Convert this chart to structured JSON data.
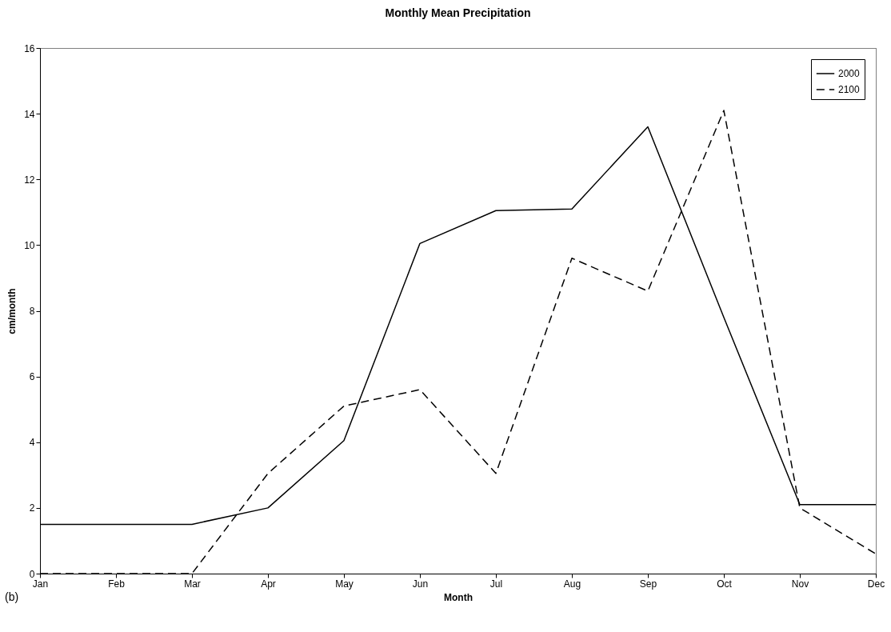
{
  "chart_data": {
    "type": "line",
    "title": "Monthly Mean Precipitation",
    "xlabel": "Month",
    "ylabel": "cm/month",
    "categories": [
      "Jan",
      "Feb",
      "Mar",
      "Apr",
      "May",
      "Jun",
      "Jul",
      "Aug",
      "Sep",
      "Oct",
      "Nov",
      "Dec"
    ],
    "series": [
      {
        "name": "2000",
        "color": "#000000",
        "line_style": "solid",
        "values": [
          1.5,
          1.5,
          1.5,
          2.0,
          4.05,
          10.05,
          11.05,
          11.1,
          13.6,
          7.8,
          2.1,
          2.1
        ]
      },
      {
        "name": "2100",
        "color": "#000000",
        "line_style": "dashed",
        "values": [
          0,
          0,
          0,
          3.05,
          5.1,
          5.6,
          3.05,
          9.6,
          8.6,
          14.1,
          2.0,
          0.6
        ]
      }
    ],
    "ylim": [
      0,
      16
    ],
    "yticks": [
      0,
      2,
      4,
      6,
      8,
      10,
      12,
      14,
      16
    ],
    "grid": false,
    "legend": "top right",
    "marker": "none",
    "annotations": [
      "(b)"
    ]
  }
}
